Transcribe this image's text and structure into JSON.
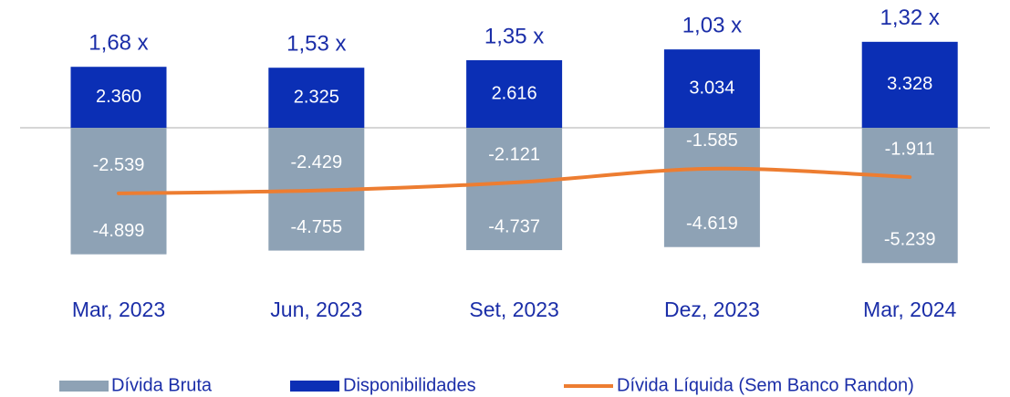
{
  "chart_data": {
    "type": "bar",
    "categories": [
      "Mar, 2023",
      "Jun, 2023",
      "Set, 2023",
      "Dez, 2023",
      "Mar, 2024"
    ],
    "series": [
      {
        "name": "Dívida Bruta",
        "color": "#8ea2b5",
        "type": "bar",
        "values": [
          -4899,
          -4755,
          -4737,
          -4619,
          -5239
        ],
        "value_labels": [
          "-4.899",
          "-4.755",
          "-4.737",
          "-4.619",
          "-5.239"
        ]
      },
      {
        "name": "Disponibilidades",
        "color": "#0b2fb5",
        "type": "bar",
        "values": [
          2360,
          2325,
          2616,
          3034,
          3328
        ],
        "value_labels": [
          "2.360",
          "2.325",
          "2.616",
          "3.034",
          "3.328"
        ]
      },
      {
        "name": "Dívida Líquida (Sem Banco Randon)",
        "color": "#ed7d31",
        "type": "line",
        "values": [
          -2539,
          -2429,
          -2121,
          -1585,
          -1911
        ],
        "value_labels": [
          "-2.539",
          "-2.429",
          "-2.121",
          "-1.585",
          "-1.911"
        ]
      }
    ],
    "ratios": [
      1.68,
      1.53,
      1.35,
      1.03,
      1.32
    ],
    "ratio_labels": [
      "1,68 x",
      "1,53 x",
      "1,35 x",
      "1,03 x",
      "1,32 x"
    ]
  }
}
